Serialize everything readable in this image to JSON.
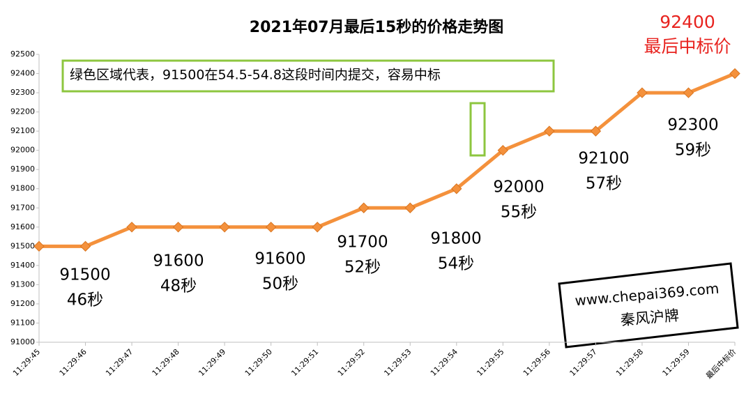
{
  "chart_data": {
    "type": "line",
    "title": "2021年07月最后15秒的价格走势图",
    "categories": [
      "11:29:45",
      "11:29:46",
      "11:29:47",
      "11:29:48",
      "11:29:49",
      "11:29:50",
      "11:29:51",
      "11:29:52",
      "11:29:53",
      "11:29:54",
      "11:29:55",
      "11:29:56",
      "11:29:57",
      "11:29:58",
      "11:29:59",
      "最后中标价"
    ],
    "values": [
      91500,
      91500,
      91600,
      91600,
      91600,
      91600,
      91600,
      91700,
      91700,
      91800,
      92000,
      92100,
      92100,
      92300,
      92300,
      92400
    ],
    "color": "#f4913c",
    "ylim": [
      91000,
      92500
    ],
    "yticks": [
      91000,
      91100,
      91200,
      91300,
      91400,
      91500,
      91600,
      91700,
      91800,
      91900,
      92000,
      92100,
      92200,
      92300,
      92400,
      92500
    ],
    "grid": false,
    "final_label": [
      "92400",
      "最后中标价"
    ],
    "point_labels": [
      [
        "91500",
        "46秒"
      ],
      [
        "91600",
        "48秒"
      ],
      [
        "91600",
        "50秒"
      ],
      [
        "91700",
        "52秒"
      ],
      [
        "91800",
        "54秒"
      ],
      [
        "92000",
        "55秒"
      ],
      [
        "92100",
        "57秒"
      ],
      [
        "92300",
        "59秒"
      ]
    ],
    "note": "绿色区域代表，91500在54.5-54.8这段时间内提交，容易中标",
    "watermark": [
      "www.chepai369.com",
      "秦风沪牌"
    ]
  }
}
